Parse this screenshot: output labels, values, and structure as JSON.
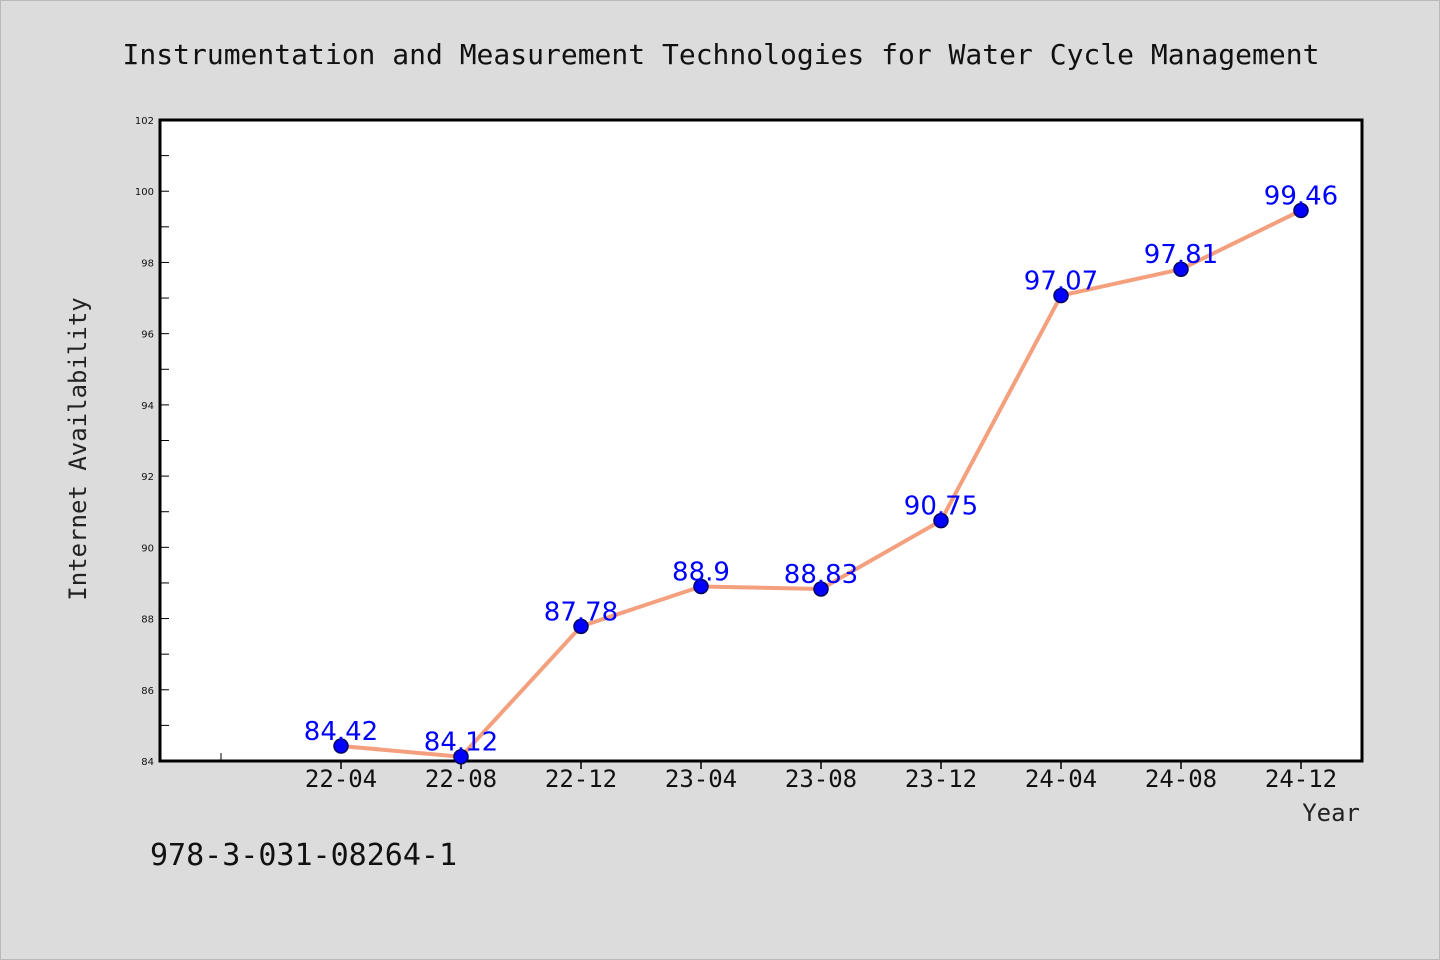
{
  "chart_data": {
    "type": "line",
    "title": "Instrumentation and Measurement Technologies for Water Cycle Management",
    "xlabel": "Year",
    "ylabel": "Internet Availability",
    "categories": [
      "22-04",
      "22-08",
      "22-12",
      "23-04",
      "23-08",
      "23-12",
      "24-04",
      "24-08",
      "24-12"
    ],
    "series": [
      {
        "values": [
          84.42,
          84.12,
          87.78,
          88.9,
          88.83,
          90.75,
          97.07,
          97.81,
          99.46
        ]
      }
    ],
    "data_labels": [
      "84.42",
      "84.12",
      "87.78",
      "88.9",
      "88.83",
      "90.75",
      "97.07",
      "97.81",
      "99.46"
    ],
    "ylim": [
      84,
      102
    ],
    "yticks": [
      "84",
      "86",
      "88",
      "90",
      "92",
      "94",
      "96",
      "98",
      "100",
      "102"
    ],
    "grid": false,
    "line_color": "#f4a07e",
    "marker_color": "#0000ff",
    "label_color": "#0000ff"
  },
  "footer": {
    "isbn": "978-3-031-08264-1"
  }
}
